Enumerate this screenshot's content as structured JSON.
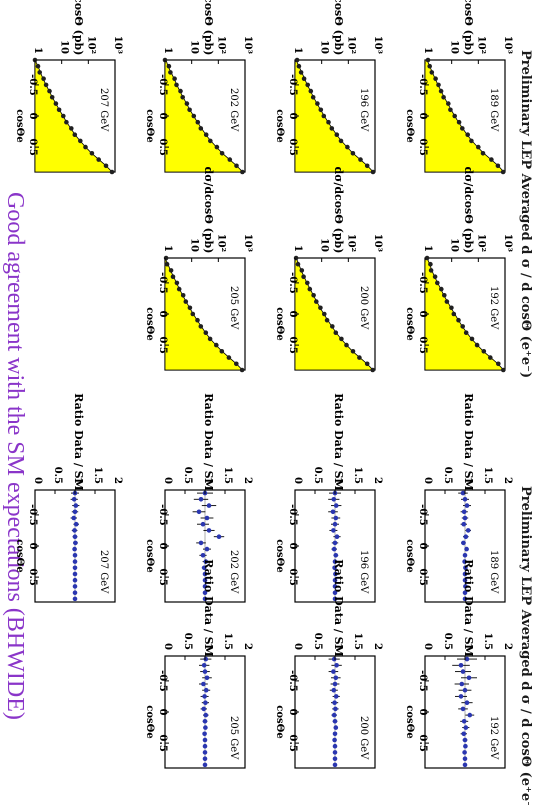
{
  "slide": {
    "title_left": "Preliminary LEP Averaged  d σ / d cosΘ (e⁺e⁻)",
    "title_right": "Preliminary LEP Averaged  d σ / d cosΘ (e⁺e⁻)",
    "footer": "Good agreement with the SM expectations (BHWIDE)",
    "colors": {
      "title": "#1a1a1a",
      "footer": "#8a35c9",
      "fill": "#ffff00",
      "points_left": "#202020",
      "points_right": "#2a36b0",
      "frame": "#000000"
    }
  },
  "chart_data": [
    {
      "panel": "xs-189",
      "type": "area",
      "energy": "189 GeV",
      "ylabel": "dσ/dcosΘ (pb)",
      "xlabel": "cosΘe",
      "yscale": "log",
      "xlim": [
        -0.9,
        0.9
      ],
      "ylim": [
        1,
        1000
      ],
      "xticks": [
        "-0.5",
        "0",
        "0.5"
      ],
      "yticks": [
        "1",
        "10",
        "10²",
        "10³"
      ],
      "x": [
        -0.9,
        -0.8,
        -0.7,
        -0.6,
        -0.5,
        -0.4,
        -0.3,
        -0.2,
        -0.1,
        0.0,
        0.1,
        0.2,
        0.3,
        0.4,
        0.5,
        0.6,
        0.7,
        0.8,
        0.9
      ],
      "theory": [
        1.2,
        1.5,
        1.9,
        2.4,
        3.1,
        4.0,
        5.3,
        7.1,
        9.6,
        13,
        18,
        26,
        38,
        58,
        95,
        160,
        300,
        560,
        900
      ],
      "data": [
        1.3,
        1.5,
        1.8,
        2.5,
        3.2,
        4.0,
        5.0,
        7.5,
        9.0,
        13,
        19,
        25,
        40,
        55,
        100,
        150,
        310,
        540,
        850
      ]
    },
    {
      "panel": "xs-192",
      "type": "area",
      "energy": "192 GeV",
      "ylabel": "dσ/dcosΘ (pb)",
      "xlabel": "cosΘe",
      "yscale": "log",
      "xlim": [
        -0.9,
        0.9
      ],
      "ylim": [
        1,
        1000
      ],
      "xticks": [
        "-0.5",
        "0",
        "0.5"
      ],
      "yticks": [
        "1",
        "10",
        "10²",
        "10³"
      ],
      "x": [
        -0.9,
        -0.8,
        -0.7,
        -0.6,
        -0.5,
        -0.4,
        -0.3,
        -0.2,
        -0.1,
        0.0,
        0.1,
        0.2,
        0.3,
        0.4,
        0.5,
        0.6,
        0.7,
        0.8,
        0.9
      ],
      "theory": [
        1.2,
        1.5,
        1.8,
        2.3,
        3.0,
        3.9,
        5.1,
        6.9,
        9.4,
        13,
        18,
        25,
        37,
        56,
        92,
        155,
        290,
        540,
        880
      ],
      "data": [
        1.2,
        1.6,
        1.7,
        2.4,
        2.9,
        4.1,
        5.3,
        6.6,
        9.8,
        12,
        18,
        26,
        35,
        58,
        90,
        160,
        280,
        560,
        860
      ]
    },
    {
      "panel": "xs-196",
      "type": "area",
      "energy": "196 GeV",
      "ylabel": "dσ/dcosΘ (pb)",
      "xlabel": "cosΘe",
      "yscale": "log",
      "xlim": [
        -0.9,
        0.9
      ],
      "ylim": [
        1,
        1000
      ],
      "xticks": [
        "-0.5",
        "0",
        "0.5"
      ],
      "yticks": [
        "1",
        "10",
        "10²",
        "10³"
      ],
      "x": [
        -0.9,
        -0.8,
        -0.7,
        -0.6,
        -0.5,
        -0.4,
        -0.3,
        -0.2,
        -0.1,
        0.0,
        0.1,
        0.2,
        0.3,
        0.4,
        0.5,
        0.6,
        0.7,
        0.8,
        0.9
      ],
      "theory": [
        1.1,
        1.4,
        1.8,
        2.3,
        2.9,
        3.8,
        5.0,
        6.7,
        9.1,
        12.5,
        17.5,
        25,
        36,
        55,
        90,
        150,
        280,
        520,
        860
      ],
      "data": [
        1.2,
        1.4,
        1.7,
        2.2,
        3.0,
        3.9,
        4.8,
        6.9,
        9.3,
        12,
        18,
        24,
        37,
        53,
        92,
        148,
        285,
        510,
        840
      ]
    },
    {
      "panel": "xs-200",
      "type": "area",
      "energy": "200 GeV",
      "ylabel": "dσ/dcosΘ (pb)",
      "xlabel": "cosΘe",
      "yscale": "log",
      "xlim": [
        -0.9,
        0.9
      ],
      "ylim": [
        1,
        1000
      ],
      "xticks": [
        "-0.5",
        "0",
        "0.5"
      ],
      "yticks": [
        "1",
        "10",
        "10²",
        "10³"
      ],
      "x": [
        -0.9,
        -0.8,
        -0.7,
        -0.6,
        -0.5,
        -0.4,
        -0.3,
        -0.2,
        -0.1,
        0.0,
        0.1,
        0.2,
        0.3,
        0.4,
        0.5,
        0.6,
        0.7,
        0.8,
        0.9
      ],
      "theory": [
        1.1,
        1.4,
        1.7,
        2.2,
        2.8,
        3.7,
        4.9,
        6.5,
        8.8,
        12,
        17,
        24,
        35,
        53,
        87,
        145,
        270,
        500,
        840
      ],
      "data": [
        1.1,
        1.3,
        1.8,
        2.1,
        2.9,
        3.6,
        5.0,
        6.3,
        9.0,
        12.5,
        16,
        25,
        34,
        55,
        85,
        150,
        260,
        510,
        820
      ]
    },
    {
      "panel": "xs-202",
      "type": "area",
      "energy": "202 GeV",
      "ylabel": "dσ/dcosΘ (pb)",
      "xlabel": "cosΘe",
      "yscale": "log",
      "xlim": [
        -0.9,
        0.9
      ],
      "ylim": [
        1,
        1000
      ],
      "xticks": [
        "-0.5",
        "0",
        "0.5"
      ],
      "yticks": [
        "1",
        "10",
        "10²",
        "10³"
      ],
      "x": [
        -0.9,
        -0.8,
        -0.7,
        -0.6,
        -0.5,
        -0.4,
        -0.3,
        -0.2,
        -0.1,
        0.0,
        0.1,
        0.2,
        0.3,
        0.4,
        0.5,
        0.6,
        0.7,
        0.8,
        0.9
      ],
      "theory": [
        1.1,
        1.3,
        1.7,
        2.2,
        2.8,
        3.6,
        4.8,
        6.4,
        8.6,
        11.8,
        16.5,
        23.5,
        34,
        52,
        85,
        142,
        265,
        490,
        820
      ],
      "data": [
        1.0,
        1.4,
        1.6,
        2.3,
        2.7,
        3.8,
        4.6,
        6.6,
        8.4,
        12,
        17,
        22,
        35,
        50,
        88,
        138,
        270,
        480,
        800
      ]
    },
    {
      "panel": "xs-205",
      "type": "area",
      "energy": "205 GeV",
      "ylabel": "dσ/dcosΘ (pb)",
      "xlabel": "cosΘe",
      "yscale": "log",
      "xlim": [
        -0.9,
        0.9
      ],
      "ylim": [
        1,
        1000
      ],
      "xticks": [
        "-0.5",
        "0",
        "0.5"
      ],
      "yticks": [
        "1",
        "10",
        "10²",
        "10³"
      ],
      "x": [
        -0.9,
        -0.8,
        -0.7,
        -0.6,
        -0.5,
        -0.4,
        -0.3,
        -0.2,
        -0.1,
        0.0,
        0.1,
        0.2,
        0.3,
        0.4,
        0.5,
        0.6,
        0.7,
        0.8,
        0.9
      ],
      "theory": [
        1.0,
        1.3,
        1.6,
        2.1,
        2.7,
        3.5,
        4.6,
        6.2,
        8.4,
        11.5,
        16,
        23,
        33,
        50,
        82,
        138,
        255,
        475,
        800
      ],
      "data": [
        1.1,
        1.2,
        1.7,
        2.0,
        2.8,
        3.4,
        4.8,
        6.0,
        8.6,
        11,
        16.5,
        22,
        34,
        49,
        84,
        135,
        250,
        470,
        780
      ]
    },
    {
      "panel": "xs-207",
      "type": "area",
      "energy": "207 GeV",
      "ylabel": "dσ/dcosΘ (pb)",
      "xlabel": "cosΘe",
      "yscale": "log",
      "xlim": [
        -0.9,
        0.9
      ],
      "ylim": [
        1,
        1000
      ],
      "xticks": [
        "-0.5",
        "0",
        "0.5"
      ],
      "yticks": [
        "1",
        "10",
        "10²",
        "10³"
      ],
      "x": [
        -0.9,
        -0.8,
        -0.7,
        -0.6,
        -0.5,
        -0.4,
        -0.3,
        -0.2,
        -0.1,
        0.0,
        0.1,
        0.2,
        0.3,
        0.4,
        0.5,
        0.6,
        0.7,
        0.8,
        0.9
      ],
      "theory": [
        1.0,
        1.3,
        1.6,
        2.0,
        2.6,
        3.4,
        4.5,
        6.0,
        8.2,
        11.2,
        15.5,
        22,
        32,
        49,
        80,
        134,
        250,
        465,
        780
      ],
      "data": [
        1.0,
        1.3,
        1.5,
        2.1,
        2.6,
        3.5,
        4.4,
        6.1,
        8.0,
        11.5,
        15,
        23,
        31,
        50,
        78,
        136,
        245,
        460,
        770
      ]
    },
    {
      "panel": "ratio-189",
      "type": "scatter",
      "energy": "189 GeV",
      "ylabel": "Ratio Data / SM",
      "xlabel": "cosΘe",
      "xlim": [
        -0.9,
        0.9
      ],
      "ylim": [
        0,
        2
      ],
      "xticks": [
        "-0.5",
        "0",
        "0.5"
      ],
      "yticks": [
        "0",
        "0.5",
        "1",
        "1.5",
        "2"
      ],
      "x": [
        -0.85,
        -0.75,
        -0.65,
        -0.55,
        -0.45,
        -0.35,
        -0.25,
        -0.15,
        -0.05,
        0.05,
        0.15,
        0.25,
        0.35,
        0.45,
        0.55,
        0.65,
        0.75,
        0.85
      ],
      "y": [
        0.95,
        1.0,
        1.05,
        0.98,
        1.0,
        0.97,
        1.08,
        1.02,
        0.96,
        1.04,
        1.0,
        0.99,
        1.01,
        1.0,
        1.0,
        1.01,
        1.0,
        1.0
      ],
      "err": [
        0.12,
        0.1,
        0.1,
        0.09,
        0.08,
        0.08,
        0.07,
        0.07,
        0.06,
        0.05,
        0.05,
        0.04,
        0.04,
        0.03,
        0.02,
        0.02,
        0.02,
        0.02
      ]
    },
    {
      "panel": "ratio-192",
      "type": "scatter",
      "energy": "192 GeV",
      "ylabel": "Ratio Data / SM",
      "xlabel": "cosΘe",
      "xlim": [
        -0.9,
        0.9
      ],
      "ylim": [
        0,
        2
      ],
      "xticks": [
        "-0.5",
        "0",
        "0.5"
      ],
      "yticks": [
        "0",
        "0.5",
        "1",
        "1.5",
        "2"
      ],
      "x": [
        -0.85,
        -0.75,
        -0.65,
        -0.55,
        -0.45,
        -0.35,
        -0.25,
        -0.15,
        -0.05,
        0.05,
        0.15,
        0.25,
        0.35,
        0.45,
        0.55,
        0.65,
        0.75,
        0.85
      ],
      "y": [
        1.05,
        0.9,
        0.95,
        1.1,
        0.92,
        1.0,
        0.9,
        1.05,
        0.95,
        1.12,
        0.98,
        1.02,
        0.97,
        1.0,
        1.01,
        0.99,
        1.0,
        1.0
      ],
      "err": [
        0.25,
        0.22,
        0.2,
        0.2,
        0.18,
        0.16,
        0.15,
        0.14,
        0.12,
        0.11,
        0.1,
        0.09,
        0.08,
        0.06,
        0.05,
        0.04,
        0.03,
        0.03
      ]
    },
    {
      "panel": "ratio-196",
      "type": "scatter",
      "energy": "196 GeV",
      "ylabel": "Ratio Data / SM",
      "xlabel": "cosΘe",
      "xlim": [
        -0.9,
        0.9
      ],
      "ylim": [
        0,
        2
      ],
      "xticks": [
        "-0.5",
        "0",
        "0.5"
      ],
      "yticks": [
        "0",
        "0.5",
        "1",
        "1.5",
        "2"
      ],
      "x": [
        -0.85,
        -0.75,
        -0.65,
        -0.55,
        -0.45,
        -0.35,
        -0.25,
        -0.15,
        -0.05,
        0.05,
        0.15,
        0.25,
        0.35,
        0.45,
        0.55,
        0.65,
        0.75,
        0.85
      ],
      "y": [
        1.0,
        0.97,
        1.03,
        0.95,
        1.02,
        1.0,
        0.96,
        1.05,
        1.0,
        0.98,
        1.02,
        1.0,
        0.99,
        1.01,
        1.0,
        1.0,
        1.0,
        1.0
      ],
      "err": [
        0.15,
        0.14,
        0.13,
        0.12,
        0.11,
        0.1,
        0.1,
        0.09,
        0.08,
        0.07,
        0.06,
        0.05,
        0.04,
        0.04,
        0.03,
        0.02,
        0.02,
        0.02
      ]
    },
    {
      "panel": "ratio-200",
      "type": "scatter",
      "energy": "200 GeV",
      "ylabel": "Ratio Data / SM",
      "xlabel": "cosΘe",
      "xlim": [
        -0.9,
        0.9
      ],
      "ylim": [
        0,
        2
      ],
      "xticks": [
        "-0.5",
        "0",
        "0.5"
      ],
      "yticks": [
        "0",
        "0.5",
        "1",
        "1.5",
        "2"
      ],
      "x": [
        -0.85,
        -0.75,
        -0.65,
        -0.55,
        -0.45,
        -0.35,
        -0.25,
        -0.15,
        -0.05,
        0.05,
        0.15,
        0.25,
        0.35,
        0.45,
        0.55,
        0.65,
        0.75,
        0.85
      ],
      "y": [
        0.98,
        1.04,
        0.96,
        1.02,
        1.0,
        0.97,
        1.03,
        0.99,
        1.01,
        0.98,
        1.0,
        1.02,
        1.0,
        0.99,
        1.0,
        1.0,
        1.0,
        1.0
      ],
      "err": [
        0.14,
        0.13,
        0.12,
        0.12,
        0.11,
        0.1,
        0.09,
        0.09,
        0.08,
        0.07,
        0.06,
        0.05,
        0.04,
        0.03,
        0.03,
        0.02,
        0.02,
        0.02
      ]
    },
    {
      "panel": "ratio-202",
      "type": "scatter",
      "energy": "202 GeV",
      "ylabel": "Ratio Data / SM",
      "xlabel": "cosΘe",
      "xlim": [
        -0.9,
        0.9
      ],
      "ylim": [
        0,
        2
      ],
      "xticks": [
        "-0.5",
        "0",
        "0.5"
      ],
      "yticks": [
        "0",
        "0.5",
        "1",
        "1.5",
        "2"
      ],
      "x": [
        -0.85,
        -0.75,
        -0.65,
        -0.55,
        -0.45,
        -0.35,
        -0.25,
        -0.15,
        -0.05,
        0.05,
        0.15,
        0.25,
        0.35,
        0.45,
        0.55,
        0.65,
        0.75,
        0.85
      ],
      "y": [
        1.0,
        0.9,
        1.1,
        0.85,
        1.05,
        0.95,
        1.1,
        1.35,
        0.9,
        1.05,
        0.95,
        1.02,
        0.98,
        1.0,
        1.0,
        1.0,
        1.0,
        1.0
      ],
      "err": [
        0.2,
        0.18,
        0.18,
        0.16,
        0.16,
        0.15,
        0.14,
        0.13,
        0.12,
        0.1,
        0.09,
        0.08,
        0.06,
        0.05,
        0.04,
        0.03,
        0.03,
        0.02
      ]
    },
    {
      "panel": "ratio-205",
      "type": "scatter",
      "energy": "205 GeV",
      "ylabel": "Ratio Data / SM",
      "xlabel": "cosΘe",
      "xlim": [
        -0.9,
        0.9
      ],
      "ylim": [
        0,
        2
      ],
      "xticks": [
        "-0.5",
        "0",
        "0.5"
      ],
      "yticks": [
        "0",
        "0.5",
        "1",
        "1.5",
        "2"
      ],
      "x": [
        -0.85,
        -0.75,
        -0.65,
        -0.55,
        -0.45,
        -0.35,
        -0.25,
        -0.15,
        -0.05,
        0.05,
        0.15,
        0.25,
        0.35,
        0.45,
        0.55,
        0.65,
        0.75,
        0.85
      ],
      "y": [
        1.02,
        0.98,
        1.0,
        1.05,
        0.96,
        1.03,
        0.99,
        1.01,
        0.97,
        1.02,
        1.0,
        1.01,
        0.99,
        1.0,
        1.0,
        1.0,
        1.0,
        1.0
      ],
      "err": [
        0.14,
        0.13,
        0.12,
        0.12,
        0.11,
        0.1,
        0.1,
        0.09,
        0.08,
        0.07,
        0.06,
        0.05,
        0.04,
        0.04,
        0.03,
        0.02,
        0.02,
        0.02
      ]
    },
    {
      "panel": "ratio-207",
      "type": "scatter",
      "energy": "207 GeV",
      "ylabel": "Ratio Data / SM",
      "xlabel": "cosΘe",
      "xlim": [
        -0.9,
        0.9
      ],
      "ylim": [
        0,
        2
      ],
      "xticks": [
        "-0.5",
        "0",
        "0.5"
      ],
      "yticks": [
        "0",
        "0.5",
        "1",
        "1.5",
        "2"
      ],
      "x": [
        -0.85,
        -0.75,
        -0.65,
        -0.55,
        -0.45,
        -0.35,
        -0.25,
        -0.15,
        -0.05,
        0.05,
        0.15,
        0.25,
        0.35,
        0.45,
        0.55,
        0.65,
        0.75,
        0.85
      ],
      "y": [
        1.0,
        0.98,
        1.02,
        1.0,
        0.97,
        1.03,
        0.99,
        1.0,
        1.01,
        0.99,
        1.0,
        1.0,
        1.0,
        1.0,
        1.0,
        1.0,
        1.0,
        1.0
      ],
      "err": [
        0.1,
        0.09,
        0.09,
        0.08,
        0.08,
        0.07,
        0.07,
        0.06,
        0.06,
        0.05,
        0.05,
        0.04,
        0.04,
        0.03,
        0.03,
        0.02,
        0.02,
        0.02
      ]
    }
  ]
}
